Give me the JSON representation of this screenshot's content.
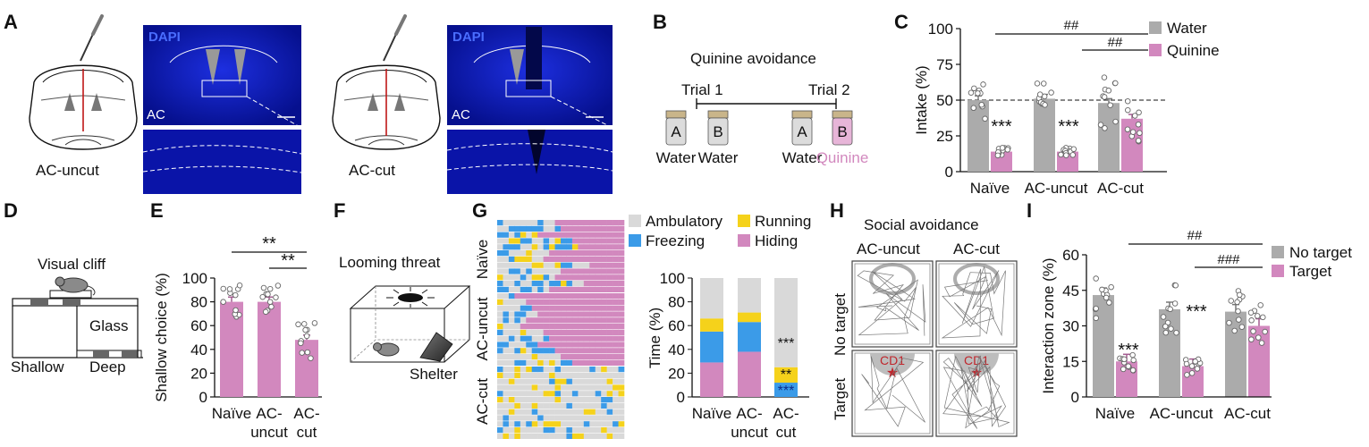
{
  "colors": {
    "water": "#ababab",
    "quinine": "#d288be",
    "dapi": "#0b12b4",
    "freezing": "#3b9be8",
    "running": "#f5d21b",
    "hiding": "#d288be",
    "ambulatory": "#d9d9d9",
    "cd1": "#c0272d"
  },
  "panels": {
    "A": "A",
    "B": "B",
    "C": "C",
    "D": "D",
    "E": "E",
    "F": "F",
    "G": "G",
    "H": "H",
    "I": "I"
  },
  "panel_a": {
    "dapi_label": "DAPI",
    "region_label": "AC",
    "label_uncut": "AC-uncut",
    "label_cut": "AC-cut",
    "icons": [
      "brain-section-icon",
      "scalpel-icon"
    ]
  },
  "panel_b": {
    "title": "Quinine avoidance",
    "trial1": "Trial 1",
    "trial2": "Trial 2",
    "bottles": [
      {
        "letter": "A",
        "label": "Water"
      },
      {
        "letter": "B",
        "label": "Water"
      },
      {
        "letter": "A",
        "label": "Water"
      },
      {
        "letter": "B",
        "label": "Quinine"
      }
    ],
    "icons": [
      "bottle-icon"
    ]
  },
  "panel_d": {
    "title": "Visual cliff",
    "glass": "Glass",
    "shallow": "Shallow",
    "deep": "Deep",
    "icons": [
      "mouse-icon"
    ]
  },
  "panel_f": {
    "title": "Looming threat",
    "shelter": "Shelter",
    "icons": [
      "looming-disk-icon",
      "mouse-icon",
      "shelter-icon"
    ]
  },
  "panel_g": {
    "legend": [
      "Ambulatory",
      "Running",
      "Freezing",
      "Hiding"
    ],
    "row_groups": [
      "Naïve",
      "AC-uncut",
      "AC-cut"
    ]
  },
  "panel_h": {
    "title": "Social avoidance",
    "col_uncut": "AC-uncut",
    "col_cut": "AC-cut",
    "row_no_target": "No target",
    "row_target": "Target",
    "cd1": "CD1",
    "icons": [
      "star-icon"
    ]
  },
  "chart_data": [
    {
      "id": "C",
      "type": "bar",
      "categories": [
        "Naïve",
        "AC-uncut",
        "AC-cut"
      ],
      "series": [
        {
          "name": "Water",
          "values": [
            50,
            51,
            48
          ]
        },
        {
          "name": "Quinine",
          "values": [
            14,
            14,
            37
          ]
        }
      ],
      "ylabel": "Intake (%)",
      "ylim": [
        0,
        100
      ],
      "yticks": [
        "0",
        "25",
        "50",
        "75",
        "100"
      ],
      "reference_line": 50,
      "annotations": {
        "stars": [
          "***",
          "***"
        ],
        "hash": [
          "##",
          "##"
        ]
      },
      "legend_position": "top-right"
    },
    {
      "id": "E",
      "type": "bar",
      "categories": [
        "Naïve",
        "AC-\nuncut",
        "AC-\ncut"
      ],
      "category_lines": [
        [
          "Naïve"
        ],
        [
          "AC-",
          "uncut"
        ],
        [
          "AC-",
          "cut"
        ]
      ],
      "values": [
        80,
        80,
        48
      ],
      "ylabel": "Shallow choice (%)",
      "ylim": [
        0,
        100
      ],
      "yticks": [
        "0",
        "20",
        "40",
        "60",
        "80",
        "100"
      ],
      "annotations": {
        "stars": [
          "**",
          "**"
        ]
      }
    },
    {
      "id": "G",
      "type": "bar",
      "stacked": true,
      "categories": [
        "Naïve",
        "AC-uncut",
        "AC-cut"
      ],
      "category_lines": [
        [
          "Naïve"
        ],
        [
          "AC-",
          "uncut"
        ],
        [
          "AC-",
          "cut"
        ]
      ],
      "series": [
        {
          "name": "Hiding",
          "values": [
            29,
            38,
            0
          ]
        },
        {
          "name": "Freezing",
          "values": [
            26,
            25,
            12
          ]
        },
        {
          "name": "Running",
          "values": [
            11,
            8,
            13
          ]
        },
        {
          "name": "Ambulatory",
          "values": [
            34,
            29,
            75
          ]
        }
      ],
      "ylabel": "Time (%)",
      "ylim": [
        0,
        100
      ],
      "yticks": [
        "0",
        "20",
        "40",
        "60",
        "80",
        "100"
      ],
      "annotations": {
        "stars": [
          "***",
          "**",
          "***"
        ]
      }
    },
    {
      "id": "I",
      "type": "bar",
      "categories": [
        "Naïve",
        "AC-uncut",
        "AC-cut"
      ],
      "series": [
        {
          "name": "No target",
          "values": [
            43,
            37,
            36
          ]
        },
        {
          "name": "Target",
          "values": [
            15,
            13,
            30
          ]
        }
      ],
      "ylabel": "Interaction zone (%)",
      "ylim": [
        0,
        60
      ],
      "yticks": [
        "0",
        "15",
        "30",
        "45",
        "60"
      ],
      "annotations": {
        "stars": [
          "***",
          "***"
        ],
        "hash": [
          "##",
          "###"
        ]
      },
      "legend_position": "top-right"
    }
  ]
}
